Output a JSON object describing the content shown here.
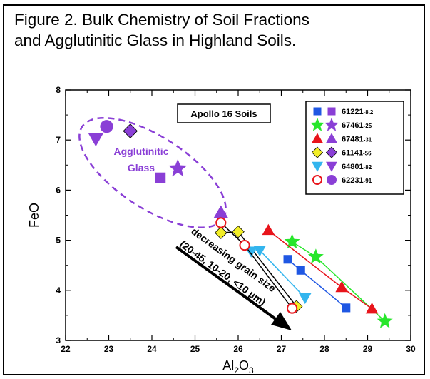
{
  "figure_title": {
    "line1": "Figure 2.  Bulk Chemistry of Soil Fractions",
    "line2": "and Agglutinitic Glass in Highland Soils."
  },
  "chart_data": {
    "type": "scatter",
    "title": "Apollo 16 Soils",
    "xlabel": "Al2O3",
    "ylabel": "FeO",
    "xlim": [
      22,
      30
    ],
    "ylim": [
      3,
      8
    ],
    "x_ticks": [
      22,
      23,
      24,
      25,
      26,
      27,
      28,
      29,
      30
    ],
    "y_ticks": [
      3,
      4,
      5,
      6,
      7,
      8
    ],
    "grid": false,
    "legend_position": "top-right",
    "series": [
      {
        "name": "61221-8.2",
        "label_main": "61221",
        "label_suffix": "-8.2",
        "color": "#1f57e3",
        "soil_marker": "square",
        "glass_marker": "square",
        "glass_color": "#8a3fd6",
        "fractions": [
          [
            27.15,
            4.62
          ],
          [
            27.45,
            4.4
          ],
          [
            28.5,
            3.65
          ]
        ],
        "glass": [
          24.2,
          6.25
        ]
      },
      {
        "name": "67461-25",
        "label_main": "67461",
        "label_suffix": "-25",
        "color": "#27e62b",
        "soil_marker": "star",
        "glass_marker": "star",
        "glass_color": "#8a3fd6",
        "fractions": [
          [
            27.25,
            4.97
          ],
          [
            27.8,
            4.67
          ],
          [
            29.4,
            3.38
          ]
        ],
        "glass": [
          24.6,
          6.43
        ]
      },
      {
        "name": "67481-31",
        "label_main": "67481",
        "label_suffix": "-31",
        "color": "#e8141b",
        "soil_marker": "triangle-up",
        "glass_marker": "triangle-up",
        "glass_color": "#8a3fd6",
        "fractions": [
          [
            26.7,
            5.2
          ],
          [
            28.4,
            4.06
          ],
          [
            29.1,
            3.63
          ]
        ],
        "glass": [
          25.6,
          5.55
        ]
      },
      {
        "name": "61141-56",
        "label_main": "61141",
        "label_suffix": "-56",
        "color": "#f2ee27",
        "soil_marker": "diamond",
        "glass_marker": "diamond",
        "glass_color": "#8a3fd6",
        "fractions": [
          [
            25.6,
            5.15
          ],
          [
            26.0,
            5.17
          ],
          [
            27.35,
            3.68
          ]
        ],
        "glass": [
          23.5,
          7.18
        ]
      },
      {
        "name": "64801-82",
        "label_main": "64801",
        "label_suffix": "-82",
        "color": "#33b5ee",
        "soil_marker": "triangle-down",
        "glass_marker": "triangle-down",
        "glass_color": "#8a3fd6",
        "fractions": [
          [
            26.3,
            4.78
          ],
          [
            26.5,
            4.8
          ],
          [
            27.55,
            3.85
          ]
        ],
        "glass": [
          22.7,
          7.02
        ]
      },
      {
        "name": "62231-91",
        "label_main": "62231",
        "label_suffix": "-91",
        "color": "#e8141b",
        "soil_marker": "circle-open",
        "glass_marker": "circle",
        "glass_color": "#8a3fd6",
        "fractions": [
          [
            25.6,
            5.35
          ],
          [
            26.15,
            4.9
          ],
          [
            27.25,
            3.64
          ]
        ],
        "glass": [
          22.95,
          7.27
        ]
      }
    ],
    "annotations": {
      "glass_label_line1": "Agglutinitic",
      "glass_label_line2": "Glass",
      "arrow_label_line1": "decreasing grain size",
      "arrow_label_line2": "(20-45, 10-20, <10 µm)"
    },
    "colors": {
      "glass_purple": "#8a3fd6",
      "axis": "#000000"
    }
  }
}
